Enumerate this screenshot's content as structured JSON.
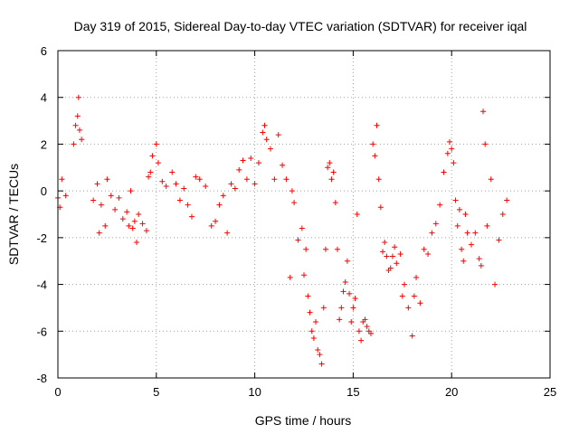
{
  "chart_data": {
    "type": "scatter",
    "title": "Day 319 of 2015, Sidereal Day-to-day VTEC variation (SDTVAR) for receiver iqal",
    "xlabel": "GPS time / hours",
    "ylabel": "SDTVAR / TECUs",
    "xlim": [
      0,
      25
    ],
    "ylim": [
      -8,
      6
    ],
    "xticks": [
      0,
      5,
      10,
      15,
      20,
      25
    ],
    "yticks": [
      -8,
      -6,
      -4,
      -2,
      0,
      2,
      4,
      6
    ],
    "grid": true,
    "marker": "+",
    "color": "#ff0000",
    "series": [
      {
        "name": "SDTVAR",
        "x": [
          0.0,
          0.1,
          0.2,
          0.4,
          0.8,
          0.9,
          1.0,
          1.05,
          1.1,
          1.2,
          1.8,
          2.0,
          2.1,
          2.2,
          2.4,
          2.5,
          2.7,
          2.9,
          3.1,
          3.3,
          3.5,
          3.6,
          3.7,
          3.8,
          3.9,
          4.0,
          4.1,
          4.3,
          4.5,
          4.6,
          4.7,
          4.8,
          5.0,
          5.1,
          5.3,
          5.5,
          5.8,
          6.0,
          6.2,
          6.4,
          6.6,
          6.8,
          7.0,
          7.2,
          7.5,
          7.8,
          8.0,
          8.2,
          8.4,
          8.6,
          8.8,
          9.0,
          9.2,
          9.4,
          9.6,
          9.8,
          10.0,
          10.2,
          10.4,
          10.5,
          10.6,
          10.8,
          11.0,
          11.2,
          11.4,
          11.6,
          11.8,
          11.9,
          12.0,
          12.2,
          12.4,
          12.5,
          12.6,
          12.7,
          12.8,
          12.9,
          13.0,
          13.1,
          13.2,
          13.3,
          13.4,
          13.5,
          13.6,
          13.7,
          13.8,
          13.9,
          14.0,
          14.1,
          14.2,
          14.3,
          14.4,
          14.5,
          14.6,
          14.7,
          14.8,
          14.9,
          15.0,
          15.1,
          15.2,
          15.3,
          15.4,
          15.5,
          15.6,
          15.7,
          15.8,
          15.9,
          16.0,
          16.1,
          16.2,
          16.3,
          16.4,
          16.5,
          16.6,
          16.7,
          16.8,
          16.9,
          17.0,
          17.1,
          17.2,
          17.4,
          17.5,
          17.6,
          17.8,
          18.0,
          18.1,
          18.2,
          18.4,
          18.6,
          18.8,
          19.0,
          19.2,
          19.4,
          19.6,
          19.8,
          19.9,
          20.0,
          20.1,
          20.2,
          20.3,
          20.4,
          20.5,
          20.6,
          20.7,
          20.8,
          21.0,
          21.2,
          21.4,
          21.5,
          21.6,
          21.7,
          21.8,
          22.0,
          22.2,
          22.4,
          22.6,
          22.8
        ],
        "y": [
          -0.3,
          -0.7,
          0.5,
          -0.2,
          2.0,
          2.8,
          3.2,
          4.0,
          2.6,
          2.2,
          -0.4,
          0.3,
          -1.8,
          -0.6,
          -1.5,
          0.5,
          -0.2,
          -0.8,
          -0.3,
          -1.2,
          -0.9,
          -1.5,
          0.0,
          -1.6,
          -1.3,
          -2.2,
          -1.0,
          -1.4,
          -1.7,
          0.6,
          0.8,
          1.5,
          2.0,
          1.2,
          0.4,
          0.2,
          0.8,
          0.3,
          -0.4,
          0.1,
          -0.6,
          -1.1,
          0.6,
          0.5,
          0.2,
          -1.5,
          -1.3,
          -0.6,
          -0.2,
          -1.8,
          0.3,
          0.1,
          0.9,
          1.3,
          0.5,
          1.4,
          0.3,
          1.2,
          2.5,
          2.8,
          2.2,
          1.8,
          0.5,
          2.4,
          1.1,
          0.5,
          -3.7,
          0.0,
          -0.5,
          -2.1,
          -1.6,
          -3.6,
          -2.5,
          -4.5,
          -5.2,
          -6.0,
          -6.3,
          -5.6,
          -6.8,
          -7.0,
          -7.4,
          -5.0,
          -2.5,
          1.0,
          1.2,
          0.5,
          0.8,
          -0.5,
          -2.5,
          -5.5,
          -5.0,
          -4.3,
          -3.9,
          -3.0,
          -4.4,
          -5.6,
          -5.0,
          -4.6,
          -1.0,
          -6.0,
          -6.4,
          -5.6,
          -5.5,
          -5.8,
          -6.0,
          -6.1,
          2.0,
          1.5,
          2.8,
          0.5,
          -0.7,
          -2.6,
          -2.2,
          -2.8,
          -3.4,
          -3.3,
          -2.8,
          -2.4,
          -3.1,
          -2.7,
          -4.5,
          -4.0,
          -5.0,
          -6.2,
          -4.5,
          -3.7,
          -4.8,
          -2.5,
          -2.7,
          -1.8,
          -1.4,
          -0.6,
          0.8,
          1.6,
          2.1,
          1.8,
          1.2,
          -0.4,
          -1.5,
          -0.8,
          -2.5,
          -3.0,
          -1.0,
          -1.8,
          -2.3,
          -1.8,
          -2.9,
          -3.2,
          3.4,
          2.0,
          -1.5,
          0.5,
          -4.0,
          -2.1,
          -1.0,
          -0.4
        ]
      }
    ]
  }
}
